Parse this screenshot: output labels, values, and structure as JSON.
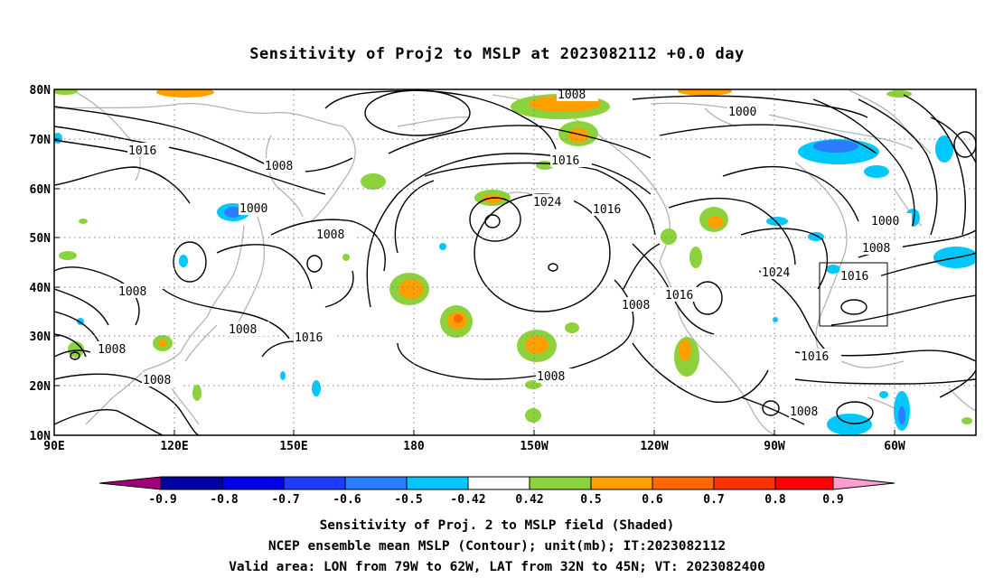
{
  "title": "Sensitivity of Proj2 to MSLP at 2023082112 +0.0 day",
  "axes": {
    "lat_ticks": [
      "80N",
      "70N",
      "60N",
      "50N",
      "40N",
      "30N",
      "20N",
      "10N"
    ],
    "lon_ticks": [
      "90E",
      "120E",
      "150E",
      "180",
      "150W",
      "120W",
      "90W",
      "60W"
    ]
  },
  "contour_labels": [
    "1008",
    "1000",
    "1016",
    "1008",
    "1016",
    "1024",
    "1016",
    "1000",
    "1008",
    "1000",
    "1008",
    "1008",
    "1008",
    "1016",
    "1016",
    "1024",
    "1016",
    "1008",
    "1008",
    "1008",
    "1008",
    "1016",
    "1008"
  ],
  "colorbar": {
    "labels": [
      "-0.9",
      "-0.8",
      "-0.7",
      "-0.6",
      "-0.5",
      "-0.42",
      "0.42",
      "0.5",
      "0.6",
      "0.7",
      "0.8",
      "0.9"
    ],
    "colors": [
      "#a0007a",
      "#0000a0",
      "#0000e6",
      "#1e3cff",
      "#2b7dff",
      "#00c8ff",
      "#ffffff",
      "#8cd23c",
      "#ff9f00",
      "#ff6a00",
      "#ff3200",
      "#ff0000",
      "#ff9ecf"
    ]
  },
  "captions": [
    "Sensitivity of Proj. 2 to MSLP field (Shaded)",
    "NCEP ensemble mean MSLP (Contour); unit(mb); IT:2023082112",
    "Valid area: LON from 79W to 62W, LAT from 32N to 45N; VT: 2023082400"
  ]
}
